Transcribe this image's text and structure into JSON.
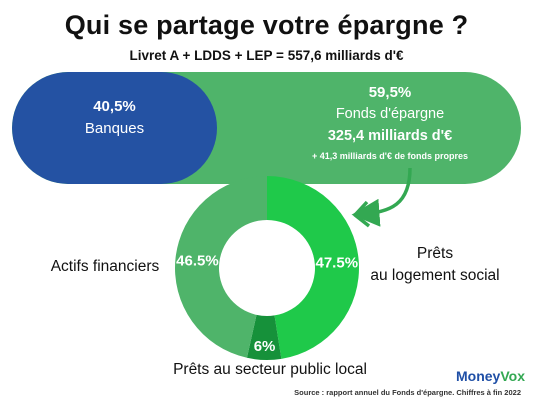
{
  "header": {
    "title": "Qui se partage votre épargne ?",
    "subtitle": "Livret A + LDDS + LEP = 557,6 milliards d'€"
  },
  "split": {
    "left": {
      "pct": "40,5%",
      "label": "Banques",
      "share": 40.5,
      "color": "#2452a3"
    },
    "right": {
      "pct": "59,5%",
      "label": "Fonds d'épargne",
      "amount": "325,4 milliards d'€",
      "note": "+ 41,3 milliards d'€ de fonds propres",
      "share": 59.5,
      "color": "#4fb46a"
    }
  },
  "chart_data": {
    "type": "pie",
    "donut": true,
    "slices": [
      {
        "name": "Prêts au logement social",
        "value": 47.5,
        "label": "47.5%",
        "color": "#1fc94a"
      },
      {
        "name": "Prêts au secteur public local",
        "value": 6,
        "label": "6%",
        "color": "#16913a"
      },
      {
        "name": "Actifs financiers",
        "value": 46.5,
        "label": "46.5%",
        "color": "#4fb46a"
      }
    ]
  },
  "labels": {
    "actifs": "Actifs financiers",
    "prets_line1": "Prêts",
    "prets_line2": "au logement social",
    "public": "Prêts au secteur public local"
  },
  "brand": {
    "part1": "Money",
    "part2": "Vox"
  },
  "source": "Source : rapport annuel du Fonds d'épargne. Chiffres à fin 2022"
}
